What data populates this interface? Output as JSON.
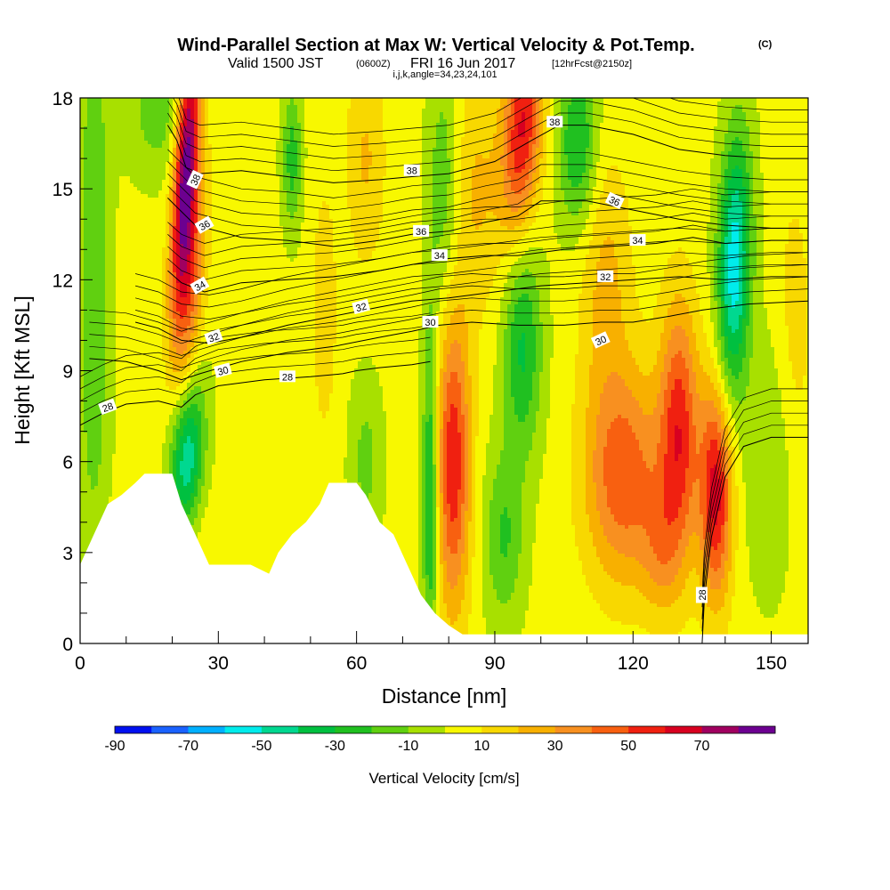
{
  "header": {
    "title": "Wind-Parallel Section at Max W: Vertical Velocity & Pot.Temp.",
    "copyright": "(C)",
    "valid_a": "Valid 1500 JST",
    "valid_b": "(0600Z)",
    "valid_c": "FRI 16 Jun 2017",
    "valid_d": "[12hrFcst@2150z]",
    "indices": "i,j,k,angle=34,23,24,101"
  },
  "chart_data": {
    "type": "heatmap",
    "xlabel": "Distance [nm]",
    "ylabel": "Height [Kft MSL]",
    "xlim": [
      0,
      158
    ],
    "ylim": [
      0,
      18
    ],
    "x_ticks": [
      0,
      30,
      60,
      90,
      120,
      150
    ],
    "y_ticks": [
      0,
      3,
      6,
      9,
      12,
      15,
      18
    ],
    "colorbar": {
      "label": "Vertical Velocity [cm/s]",
      "tick_labels": [
        -90,
        -70,
        -50,
        -30,
        -10,
        10,
        30,
        50,
        70
      ],
      "bins": [
        -90,
        -80,
        -70,
        -60,
        -50,
        -40,
        -30,
        -20,
        -10,
        0,
        10,
        20,
        30,
        40,
        50,
        60,
        70,
        80
      ],
      "colors": [
        "#0010f0",
        "#1a62ff",
        "#00b0ff",
        "#00ecec",
        "#00d890",
        "#00c040",
        "#20c020",
        "#60d010",
        "#a8e000",
        "#f8f800",
        "#f8d800",
        "#f8b000",
        "#f89020",
        "#f86010",
        "#f02010",
        "#d80020",
        "#a00060",
        "#6c0090"
      ]
    },
    "terrain": [
      {
        "x": 0,
        "h": 2.6
      },
      {
        "x": 3,
        "h": 3.6
      },
      {
        "x": 6,
        "h": 4.6
      },
      {
        "x": 9,
        "h": 4.9
      },
      {
        "x": 12,
        "h": 5.3
      },
      {
        "x": 14,
        "h": 5.6
      },
      {
        "x": 20,
        "h": 5.6
      },
      {
        "x": 22,
        "h": 4.6
      },
      {
        "x": 25,
        "h": 3.6
      },
      {
        "x": 28,
        "h": 2.6
      },
      {
        "x": 37,
        "h": 2.6
      },
      {
        "x": 41,
        "h": 2.3
      },
      {
        "x": 43,
        "h": 3.0
      },
      {
        "x": 46,
        "h": 3.6
      },
      {
        "x": 49,
        "h": 4.0
      },
      {
        "x": 52,
        "h": 4.6
      },
      {
        "x": 54,
        "h": 5.3
      },
      {
        "x": 60,
        "h": 5.3
      },
      {
        "x": 62,
        "h": 4.9
      },
      {
        "x": 65,
        "h": 4.0
      },
      {
        "x": 68,
        "h": 3.6
      },
      {
        "x": 71,
        "h": 2.6
      },
      {
        "x": 74,
        "h": 1.6
      },
      {
        "x": 77,
        "h": 1.0
      },
      {
        "x": 80,
        "h": 0.6
      },
      {
        "x": 83,
        "h": 0.3
      },
      {
        "x": 158,
        "h": 0.3
      }
    ],
    "vertical_velocity_features": [
      {
        "x": 23,
        "h": 16,
        "sx": 1.8,
        "sy": 3.5,
        "w": 80,
        "tilt": 0.38
      },
      {
        "x": 24,
        "h": 12,
        "sx": 2.2,
        "sy": 3.0,
        "w": 38,
        "tilt": 0.38
      },
      {
        "x": 23,
        "h": 6,
        "sx": 2.6,
        "sy": 2.0,
        "w": -55,
        "tilt": 0.38
      },
      {
        "x": 18,
        "h": 3.2,
        "sx": 6.0,
        "sy": 1.5,
        "w": 18,
        "tilt": 0
      },
      {
        "x": 3,
        "h": 12,
        "sx": 2.5,
        "sy": 7.0,
        "w": -22,
        "tilt": 0
      },
      {
        "x": 17,
        "h": 17.5,
        "sx": 5.0,
        "sy": 1.5,
        "w": -18,
        "tilt": 0
      },
      {
        "x": 46,
        "h": 16,
        "sx": 1.5,
        "sy": 1.6,
        "w": -28,
        "tilt": 0
      },
      {
        "x": 53,
        "h": 11,
        "sx": 2.0,
        "sy": 3.0,
        "w": 14,
        "tilt": 0
      },
      {
        "x": 62,
        "h": 16,
        "sx": 3.0,
        "sy": 2.5,
        "w": 18,
        "tilt": 0
      },
      {
        "x": 62,
        "h": 6,
        "sx": 2.5,
        "sy": 2.0,
        "w": -16,
        "tilt": 0
      },
      {
        "x": 76,
        "h": 5,
        "sx": 1.2,
        "sy": 4.0,
        "w": -38,
        "tilt": 0
      },
      {
        "x": 81,
        "h": 6,
        "sx": 2.6,
        "sy": 3.5,
        "w": 55,
        "tilt": 0
      },
      {
        "x": 79,
        "h": 15,
        "sx": 2.5,
        "sy": 3.0,
        "w": -22,
        "tilt": 0
      },
      {
        "x": 96,
        "h": 17,
        "sx": 3.0,
        "sy": 2.5,
        "w": 58,
        "tilt": 0.35
      },
      {
        "x": 86,
        "h": 15,
        "sx": 4.0,
        "sy": 3.0,
        "w": 18,
        "tilt": 0
      },
      {
        "x": 96,
        "h": 9.8,
        "sx": 3.0,
        "sy": 2.5,
        "w": -35,
        "tilt": 0
      },
      {
        "x": 92,
        "h": 3.5,
        "sx": 3.0,
        "sy": 2.0,
        "w": -24,
        "tilt": 0
      },
      {
        "x": 108,
        "h": 16.5,
        "sx": 3.0,
        "sy": 2.0,
        "w": -35,
        "tilt": 0
      },
      {
        "x": 114,
        "h": 12,
        "sx": 4.0,
        "sy": 3.0,
        "w": 20,
        "tilt": 0
      },
      {
        "x": 118,
        "h": 5.5,
        "sx": 6.0,
        "sy": 2.5,
        "w": 45,
        "tilt": 0
      },
      {
        "x": 130,
        "h": 7,
        "sx": 3.0,
        "sy": 3.0,
        "w": 52,
        "tilt": 0
      },
      {
        "x": 138,
        "h": 5,
        "sx": 2.5,
        "sy": 2.5,
        "w": 62,
        "tilt": 0
      },
      {
        "x": 126,
        "h": 3,
        "sx": 3.0,
        "sy": 1.5,
        "w": 20,
        "tilt": 0
      },
      {
        "x": 142,
        "h": 12.5,
        "sx": 2.5,
        "sy": 3.0,
        "w": -60,
        "tilt": 0.15
      },
      {
        "x": 150,
        "h": 6,
        "sx": 4.0,
        "sy": 3.0,
        "w": -14,
        "tilt": 0
      },
      {
        "x": 155,
        "h": 10,
        "sx": 3.0,
        "sy": 4.0,
        "w": 12,
        "tilt": 0
      }
    ],
    "theta_contours": [
      {
        "level": 38,
        "points": [
          [
            19,
            17.1
          ],
          [
            21,
            16.6
          ],
          [
            23,
            15.7
          ],
          [
            26,
            15.5
          ],
          [
            35,
            15.6
          ],
          [
            45,
            15.4
          ],
          [
            55,
            15.2
          ],
          [
            65,
            15.3
          ],
          [
            72,
            15.4
          ],
          [
            80,
            15.5
          ],
          [
            90,
            15.9
          ],
          [
            98,
            16.6
          ],
          [
            104,
            17.1
          ],
          [
            110,
            17.1
          ],
          [
            120,
            16.8
          ],
          [
            130,
            16.3
          ],
          [
            140,
            16.1
          ],
          [
            150,
            16.0
          ],
          [
            158,
            16.0
          ]
        ]
      },
      {
        "level": 36,
        "points": [
          [
            19,
            14.7
          ],
          [
            21,
            14.4
          ],
          [
            25,
            13.8
          ],
          [
            35,
            13.4
          ],
          [
            45,
            13.3
          ],
          [
            55,
            13.1
          ],
          [
            65,
            13.3
          ],
          [
            72,
            13.5
          ],
          [
            80,
            13.6
          ],
          [
            88,
            13.9
          ],
          [
            95,
            14.1
          ],
          [
            100,
            14.6
          ],
          [
            110,
            14.6
          ],
          [
            120,
            14.3
          ],
          [
            130,
            14.0
          ],
          [
            140,
            13.8
          ],
          [
            150,
            13.7
          ],
          [
            158,
            13.7
          ]
        ]
      },
      {
        "level": 34,
        "points": [
          [
            19,
            12.3
          ],
          [
            22,
            11.9
          ],
          [
            27,
            11.6
          ],
          [
            35,
            11.9
          ],
          [
            45,
            12.0
          ],
          [
            55,
            12.1
          ],
          [
            65,
            12.3
          ],
          [
            72,
            12.5
          ],
          [
            80,
            12.7
          ],
          [
            88,
            12.8
          ],
          [
            95,
            12.8
          ],
          [
            105,
            13.0
          ],
          [
            115,
            13.1
          ],
          [
            125,
            13.2
          ],
          [
            133,
            13.4
          ],
          [
            140,
            13.2
          ],
          [
            150,
            13.3
          ],
          [
            158,
            13.3
          ]
        ]
      },
      {
        "level": 32,
        "points": [
          [
            12,
            10.6
          ],
          [
            17,
            10.4
          ],
          [
            22,
            10.0
          ],
          [
            28,
            9.9
          ],
          [
            35,
            10.1
          ],
          [
            45,
            10.5
          ],
          [
            55,
            10.8
          ],
          [
            65,
            11.1
          ],
          [
            72,
            11.3
          ],
          [
            80,
            11.4
          ],
          [
            90,
            11.6
          ],
          [
            100,
            11.8
          ],
          [
            110,
            11.9
          ],
          [
            120,
            12.0
          ],
          [
            130,
            12.1
          ],
          [
            140,
            12.0
          ],
          [
            150,
            12.1
          ],
          [
            158,
            12.1
          ]
        ]
      },
      {
        "level": 30,
        "points": [
          [
            2,
            9.4
          ],
          [
            10,
            9.3
          ],
          [
            17,
            9.0
          ],
          [
            22,
            8.7
          ],
          [
            26,
            8.9
          ],
          [
            35,
            9.3
          ],
          [
            45,
            9.6
          ],
          [
            55,
            9.8
          ],
          [
            65,
            10.1
          ],
          [
            72,
            10.3
          ],
          [
            78,
            10.5
          ],
          [
            85,
            10.6
          ],
          [
            95,
            10.5
          ],
          [
            105,
            10.5
          ],
          [
            113,
            10.6
          ],
          [
            120,
            10.6
          ],
          [
            128,
            10.8
          ],
          [
            135,
            11.0
          ],
          [
            145,
            11.2
          ],
          [
            158,
            11.3
          ]
        ]
      },
      {
        "level": 28,
        "points": [
          [
            0,
            7.2
          ],
          [
            5,
            7.6
          ],
          [
            10,
            7.9
          ],
          [
            17,
            8.0
          ],
          [
            22,
            7.8
          ],
          [
            25,
            8.2
          ],
          [
            30,
            8.5
          ],
          [
            40,
            8.7
          ],
          [
            50,
            8.8
          ],
          [
            57,
            8.9
          ],
          [
            60,
            9.0
          ],
          [
            65,
            9.1
          ],
          [
            72,
            9.2
          ],
          [
            76,
            9.3
          ]
        ]
      },
      {
        "level": 28,
        "points": [
          [
            135,
            0.0
          ],
          [
            135.5,
            1.5
          ],
          [
            137,
            3.5
          ],
          [
            140,
            5.5
          ],
          [
            144,
            6.5
          ],
          [
            150,
            6.8
          ],
          [
            158,
            6.8
          ]
        ]
      }
    ],
    "contour_labels": [
      {
        "x": 25,
        "h": 15.3,
        "text": "38",
        "rot": -65
      },
      {
        "x": 72,
        "h": 15.6,
        "text": "38",
        "rot": 0
      },
      {
        "x": 103,
        "h": 17.2,
        "text": "38",
        "rot": 0
      },
      {
        "x": 27,
        "h": 13.8,
        "text": "36",
        "rot": -30
      },
      {
        "x": 74,
        "h": 13.6,
        "text": "36",
        "rot": 0
      },
      {
        "x": 116,
        "h": 14.6,
        "text": "36",
        "rot": 25
      },
      {
        "x": 26,
        "h": 11.8,
        "text": "34",
        "rot": -30
      },
      {
        "x": 78,
        "h": 12.8,
        "text": "34",
        "rot": 0
      },
      {
        "x": 121,
        "h": 13.3,
        "text": "34",
        "rot": 0
      },
      {
        "x": 29,
        "h": 10.1,
        "text": "32",
        "rot": -20
      },
      {
        "x": 61,
        "h": 11.1,
        "text": "32",
        "rot": -15
      },
      {
        "x": 114,
        "h": 12.1,
        "text": "32",
        "rot": 0
      },
      {
        "x": 31,
        "h": 9.0,
        "text": "30",
        "rot": -15
      },
      {
        "x": 76,
        "h": 10.6,
        "text": "30",
        "rot": 0
      },
      {
        "x": 113,
        "h": 10.0,
        "text": "30",
        "rot": -25
      },
      {
        "x": 6,
        "h": 7.8,
        "text": "28",
        "rot": -20
      },
      {
        "x": 45,
        "h": 8.8,
        "text": "28",
        "rot": 0
      },
      {
        "x": 135,
        "h": 1.6,
        "text": "28",
        "rot": -90
      }
    ]
  }
}
